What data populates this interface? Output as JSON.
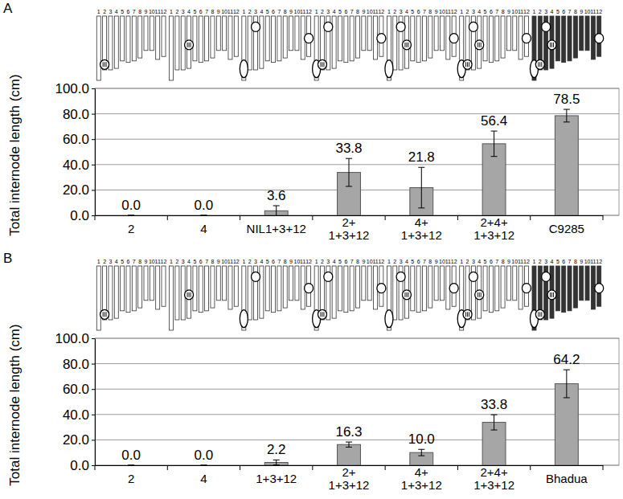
{
  "chart_data": [
    {
      "type": "bar",
      "title": "A",
      "y_label": "Total internode length (cm)",
      "categories": [
        "2",
        "4",
        "NIL1+3+12",
        "2+\n1+3+12",
        "4+\n1+3+12",
        "2+4+\n1+3+12",
        "C9285"
      ],
      "values": [
        0.0,
        0.0,
        3.6,
        33.8,
        21.8,
        56.4,
        78.5
      ],
      "errors": [
        0,
        0,
        4.0,
        11.0,
        16.0,
        10.0,
        5.0
      ],
      "value_labels": [
        "0.0",
        "0.0",
        "3.6",
        "33.8",
        "21.8",
        "56.4",
        "78.5"
      ],
      "data_labels": true,
      "color": "#a6a6a6",
      "ylim": [
        0,
        100
      ],
      "yticks": [
        {
          "value": 0,
          "label": "0.0"
        },
        {
          "value": 20,
          "label": "20.0"
        },
        {
          "value": 40,
          "label": "40.0"
        },
        {
          "value": 60,
          "label": "60.0"
        },
        {
          "value": 80,
          "label": "80.0"
        },
        {
          "value": 100,
          "label": "100.0"
        }
      ],
      "grid": true,
      "chromosome_labels": [
        1,
        2,
        3,
        4,
        5,
        6,
        7,
        8,
        9,
        10,
        11,
        12
      ],
      "schematics": [
        {
          "color": "#ffffff",
          "qtl": [
            {
              "chromosome": 2,
              "hatched": true
            }
          ]
        },
        {
          "color": "#ffffff",
          "qtl": [
            {
              "chromosome": 4,
              "hatched": true
            }
          ]
        },
        {
          "color": "#ffffff",
          "qtl": [
            {
              "chromosome": 1,
              "hatched": false
            },
            {
              "chromosome": 3,
              "hatched": false
            },
            {
              "chromosome": 12,
              "hatched": false
            }
          ]
        },
        {
          "color": "#ffffff",
          "qtl": [
            {
              "chromosome": 1,
              "hatched": false
            },
            {
              "chromosome": 2,
              "hatched": true
            },
            {
              "chromosome": 3,
              "hatched": false
            },
            {
              "chromosome": 12,
              "hatched": false
            }
          ]
        },
        {
          "color": "#ffffff",
          "qtl": [
            {
              "chromosome": 1,
              "hatched": false
            },
            {
              "chromosome": 3,
              "hatched": false
            },
            {
              "chromosome": 4,
              "hatched": true
            },
            {
              "chromosome": 12,
              "hatched": false
            }
          ]
        },
        {
          "color": "#ffffff",
          "qtl": [
            {
              "chromosome": 1,
              "hatched": false
            },
            {
              "chromosome": 2,
              "hatched": true
            },
            {
              "chromosome": 3,
              "hatched": false
            },
            {
              "chromosome": 4,
              "hatched": true
            },
            {
              "chromosome": 12,
              "hatched": false
            }
          ]
        },
        {
          "color": "#333333",
          "qtl": [
            {
              "chromosome": 1,
              "hatched": false
            },
            {
              "chromosome": 2,
              "hatched": true
            },
            {
              "chromosome": 3,
              "hatched": false
            },
            {
              "chromosome": 4,
              "hatched": true
            },
            {
              "chromosome": 12,
              "hatched": false
            }
          ]
        }
      ]
    },
    {
      "type": "bar",
      "title": "B",
      "y_label": "Total internode length (cm)",
      "categories": [
        "2",
        "4",
        "1+3+12",
        "2+\n1+3+12",
        "4+\n1+3+12",
        "2+4+\n1+3+12",
        "Bhadua"
      ],
      "values": [
        0.0,
        0.0,
        2.2,
        16.3,
        10.0,
        33.8,
        64.2
      ],
      "errors": [
        0,
        0,
        2.0,
        2.0,
        2.5,
        6.0,
        11.0
      ],
      "value_labels": [
        "0.0",
        "0.0",
        "2.2",
        "16.3",
        "10.0",
        "33.8",
        "64.2"
      ],
      "data_labels": true,
      "color": "#a6a6a6",
      "ylim": [
        0,
        100
      ],
      "yticks": [
        {
          "value": 0,
          "label": "0.0"
        },
        {
          "value": 20,
          "label": "20.0"
        },
        {
          "value": 40,
          "label": "40.0"
        },
        {
          "value": 60,
          "label": "60.0"
        },
        {
          "value": 80,
          "label": "80.0"
        },
        {
          "value": 100,
          "label": "100.0"
        }
      ],
      "grid": true,
      "chromosome_labels": [
        1,
        2,
        3,
        4,
        5,
        6,
        7,
        8,
        9,
        10,
        11,
        12
      ],
      "schematics": [
        {
          "color": "#ffffff",
          "qtl": [
            {
              "chromosome": 2,
              "hatched": true
            }
          ]
        },
        {
          "color": "#ffffff",
          "qtl": [
            {
              "chromosome": 4,
              "hatched": true
            }
          ]
        },
        {
          "color": "#ffffff",
          "qtl": [
            {
              "chromosome": 1,
              "hatched": false
            },
            {
              "chromosome": 3,
              "hatched": false
            },
            {
              "chromosome": 12,
              "hatched": false
            }
          ]
        },
        {
          "color": "#ffffff",
          "qtl": [
            {
              "chromosome": 1,
              "hatched": false
            },
            {
              "chromosome": 2,
              "hatched": true
            },
            {
              "chromosome": 3,
              "hatched": false
            },
            {
              "chromosome": 12,
              "hatched": false
            }
          ]
        },
        {
          "color": "#ffffff",
          "qtl": [
            {
              "chromosome": 1,
              "hatched": false
            },
            {
              "chromosome": 3,
              "hatched": false
            },
            {
              "chromosome": 4,
              "hatched": true
            },
            {
              "chromosome": 12,
              "hatched": false
            }
          ]
        },
        {
          "color": "#ffffff",
          "qtl": [
            {
              "chromosome": 1,
              "hatched": false
            },
            {
              "chromosome": 2,
              "hatched": true
            },
            {
              "chromosome": 3,
              "hatched": false
            },
            {
              "chromosome": 4,
              "hatched": true
            },
            {
              "chromosome": 12,
              "hatched": false
            }
          ]
        },
        {
          "color": "#333333",
          "qtl": [
            {
              "chromosome": 1,
              "hatched": false
            },
            {
              "chromosome": 2,
              "hatched": true
            },
            {
              "chromosome": 3,
              "hatched": false
            },
            {
              "chromosome": 4,
              "hatched": true
            },
            {
              "chromosome": 12,
              "hatched": false
            }
          ]
        }
      ]
    }
  ]
}
